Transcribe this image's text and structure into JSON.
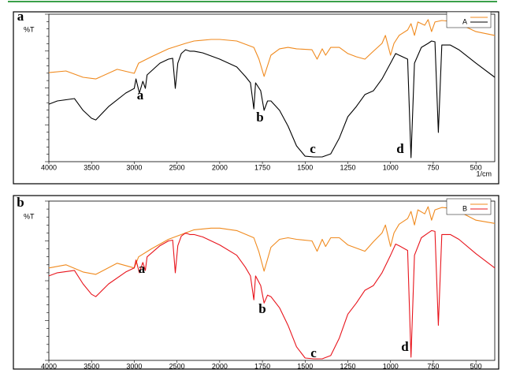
{
  "chart_data": [
    {
      "type": "line",
      "label": "a",
      "y_label": "%T",
      "x_label": "1/cm",
      "xlim": [
        4000,
        390
      ],
      "ylim": [
        0,
        100
      ],
      "xticks": [
        4000,
        3500,
        3000,
        2500,
        2000,
        1750,
        1500,
        1250,
        1000,
        750,
        500
      ],
      "annotations": [
        "a",
        "b",
        "c",
        "d"
      ],
      "series": [
        {
          "color": "#f08a1e",
          "x": [
            4000,
            3800,
            3600,
            3450,
            3200,
            3000,
            2950,
            2800,
            2600,
            2400,
            2300,
            2100,
            2000,
            1900,
            1800,
            1770,
            1740,
            1700,
            1650,
            1600,
            1550,
            1460,
            1430,
            1400,
            1380,
            1350,
            1300,
            1250,
            1200,
            1150,
            1100,
            1050,
            1030,
            1000,
            980,
            950,
            900,
            880,
            860,
            840,
            800,
            780,
            760,
            740,
            700,
            650,
            600,
            500,
            390
          ],
          "values": [
            60.4,
            61.5,
            57.2,
            56.1,
            62.6,
            59.9,
            66.8,
            71.1,
            76.5,
            80.2,
            81.8,
            82.9,
            82.9,
            81.8,
            77.5,
            69.5,
            57.8,
            72.2,
            76.5,
            77.5,
            76.5,
            75.9,
            69.5,
            76.5,
            72.2,
            77.5,
            77.5,
            73.3,
            71.1,
            69.5,
            74.9,
            80.2,
            85.6,
            72.2,
            80.2,
            85.6,
            89.3,
            93.6,
            85.6,
            94.7,
            92.5,
            96.3,
            88.2,
            94.7,
            95.7,
            95.2,
            93.6,
            88.2,
            85.6
          ]
        },
        {
          "name": "A",
          "color": "#000000",
          "x": [
            4000,
            3900,
            3700,
            3600,
            3500,
            3450,
            3300,
            3100,
            3000,
            2980,
            2940,
            2900,
            2870,
            2850,
            2700,
            2600,
            2550,
            2520,
            2490,
            2450,
            2400,
            2350,
            2300,
            2200,
            2000,
            1900,
            1850,
            1820,
            1800,
            1790,
            1760,
            1740,
            1720,
            1700,
            1650,
            1600,
            1550,
            1500,
            1450,
            1400,
            1350,
            1300,
            1250,
            1200,
            1150,
            1100,
            1050,
            1000,
            970,
            950,
            900,
            880,
            860,
            820,
            780,
            760,
            740,
            720,
            700,
            650,
            600,
            500,
            390
          ],
          "values": [
            39.0,
            41.2,
            42.8,
            34.8,
            29.4,
            28.3,
            37.4,
            46.5,
            49.7,
            56.1,
            46.5,
            54.5,
            49.7,
            58.8,
            66.8,
            69.5,
            70.1,
            49.7,
            66.8,
            73.3,
            75.9,
            74.9,
            74.9,
            73.8,
            69.5,
            64.2,
            57.8,
            53.5,
            35.8,
            53.5,
            48.1,
            34.8,
            41.2,
            41.2,
            34.8,
            24.1,
            10.7,
            3.7,
            3.2,
            3.2,
            5.3,
            16.0,
            30.5,
            37.4,
            45.5,
            48.1,
            56.1,
            66.8,
            73.3,
            72.2,
            69.5,
            2.7,
            66.8,
            77.5,
            80.2,
            81.8,
            81.3,
            19.8,
            79.1,
            79.1,
            75.9,
            66.8,
            57.2
          ]
        }
      ]
    },
    {
      "type": "line",
      "label": "b",
      "y_label": "%T",
      "xlim": [
        4000,
        390
      ],
      "ylim": [
        0,
        100
      ],
      "xticks": [
        4000,
        3500,
        3000,
        2500,
        2000,
        1750,
        1500,
        1250,
        1000,
        750,
        500
      ],
      "annotations": [
        "a",
        "b",
        "c",
        "d"
      ],
      "series": [
        {
          "color": "#f08a1e",
          "x": [
            4000,
            3800,
            3600,
            3450,
            3200,
            3000,
            2950,
            2800,
            2600,
            2400,
            2300,
            2100,
            2000,
            1900,
            1800,
            1770,
            1740,
            1700,
            1650,
            1600,
            1550,
            1460,
            1430,
            1400,
            1380,
            1350,
            1300,
            1250,
            1200,
            1150,
            1100,
            1050,
            1030,
            1000,
            980,
            950,
            900,
            880,
            860,
            840,
            800,
            780,
            760,
            740,
            700,
            650,
            600,
            500,
            390
          ],
          "values": [
            58.0,
            60.0,
            55.5,
            54.0,
            61.0,
            58.0,
            65.0,
            70.0,
            76.0,
            80.0,
            82.0,
            83.0,
            83.0,
            81.5,
            77.0,
            68.0,
            56.0,
            71.0,
            76.0,
            77.0,
            76.0,
            75.0,
            68.5,
            76.0,
            71.5,
            77.0,
            77.0,
            72.5,
            70.5,
            68.5,
            74.5,
            80.0,
            85.0,
            71.5,
            80.0,
            85.5,
            89.0,
            93.5,
            85.0,
            94.5,
            92.0,
            96.5,
            88.0,
            94.5,
            96.0,
            95.5,
            93.5,
            88.0,
            86.0
          ]
        },
        {
          "name": "B",
          "color": "#e8141c",
          "x": [
            4000,
            3900,
            3700,
            3600,
            3500,
            3450,
            3300,
            3100,
            3000,
            2980,
            2940,
            2900,
            2870,
            2850,
            2700,
            2600,
            2550,
            2520,
            2490,
            2450,
            2400,
            2350,
            2300,
            2200,
            2000,
            1900,
            1850,
            1820,
            1800,
            1790,
            1760,
            1740,
            1720,
            1700,
            1650,
            1600,
            1550,
            1500,
            1450,
            1400,
            1350,
            1300,
            1250,
            1200,
            1150,
            1100,
            1050,
            1000,
            970,
            950,
            900,
            880,
            860,
            820,
            780,
            760,
            740,
            720,
            700,
            650,
            600,
            500,
            390
          ],
          "values": [
            53.0,
            55.0,
            56.5,
            48.0,
            41.5,
            40.0,
            48.0,
            55.5,
            58.0,
            63.0,
            55.0,
            61.5,
            56.5,
            65.0,
            72.0,
            75.0,
            75.5,
            55.0,
            72.0,
            78.0,
            80.0,
            79.0,
            79.0,
            77.5,
            72.5,
            66.0,
            58.5,
            53.0,
            38.0,
            53.0,
            47.0,
            36.0,
            41.0,
            40.0,
            33.0,
            22.0,
            8.5,
            1.5,
            1.0,
            1.0,
            3.0,
            14.0,
            29.0,
            36.0,
            44.0,
            47.0,
            55.0,
            66.0,
            73.0,
            72.0,
            69.0,
            2.0,
            66.0,
            77.0,
            80.0,
            81.5,
            81.0,
            22.0,
            79.0,
            79.0,
            76.0,
            67.0,
            58.0
          ]
        }
      ]
    }
  ]
}
